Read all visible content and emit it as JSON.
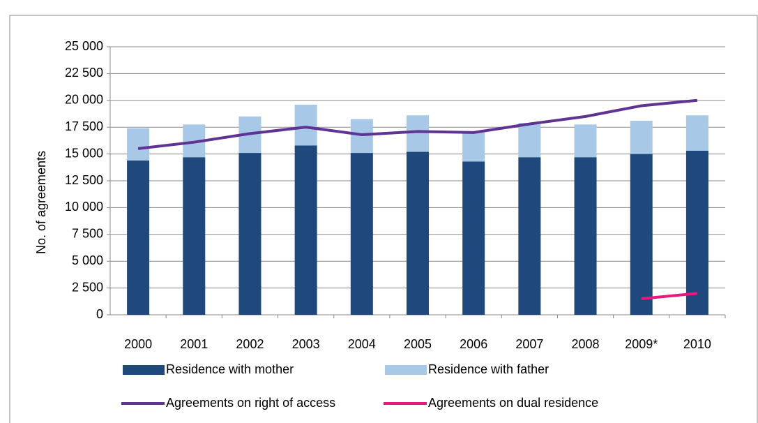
{
  "chart_data": {
    "type": "bar",
    "y_label": "No. of agreements",
    "categories": [
      "2000",
      "2001",
      "2002",
      "2003",
      "2004",
      "2005",
      "2006",
      "2007",
      "2008",
      "2009*",
      "2010"
    ],
    "series": [
      {
        "name": "Residence with mother",
        "color": "#1f497d",
        "kind": "bar",
        "values": [
          14400,
          14700,
          15100,
          15800,
          15100,
          15200,
          14300,
          14700,
          14700,
          15000,
          15300
        ]
      },
      {
        "name": "Residence with father",
        "color": "#a7c8e6",
        "kind": "bar",
        "values": [
          3000,
          3050,
          3400,
          3800,
          3150,
          3400,
          2700,
          3200,
          3050,
          3100,
          3300
        ]
      },
      {
        "name": "Agreements on right of access",
        "color": "#5f3393",
        "kind": "line",
        "values": [
          15500,
          16100,
          16900,
          17500,
          16800,
          17100,
          17000,
          17800,
          18500,
          19500,
          20000
        ]
      },
      {
        "name": "Agreements on dual residence",
        "color": "#e8197c",
        "kind": "line",
        "values": [
          null,
          null,
          null,
          null,
          null,
          null,
          null,
          null,
          null,
          1500,
          2000
        ]
      }
    ],
    "stacked": true,
    "ylim": [
      0,
      25000
    ],
    "yticks": [
      0,
      {
        "value": 2500,
        "label": "2 500"
      },
      {
        "value": 5000,
        "label": "5 000"
      },
      {
        "value": 7500,
        "label": "7 500"
      },
      {
        "value": 10000,
        "label": "10 000"
      },
      {
        "value": 12500,
        "label": "12 500"
      },
      {
        "value": 15000,
        "label": "15 000"
      },
      {
        "value": 17500,
        "label": "17 500"
      },
      {
        "value": 20000,
        "label": "20 000"
      },
      {
        "value": 22500,
        "label": "22 500"
      },
      {
        "value": 25000,
        "label": "25 000"
      }
    ],
    "grid": true
  }
}
